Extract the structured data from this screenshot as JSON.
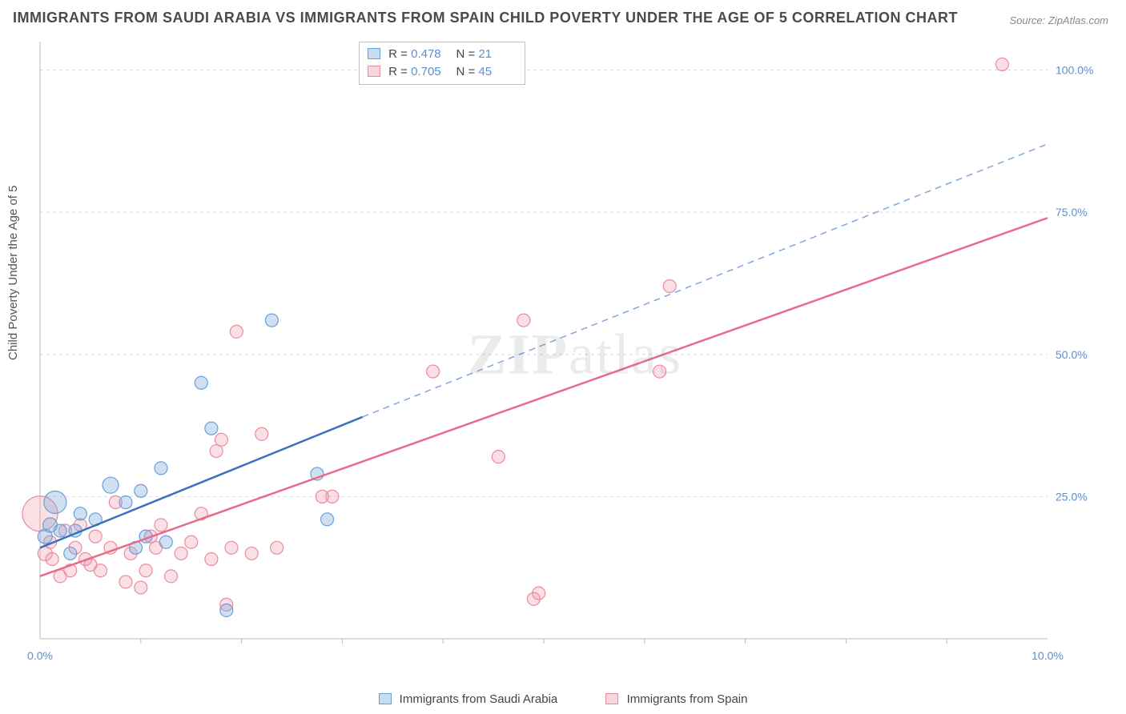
{
  "title": "IMMIGRANTS FROM SAUDI ARABIA VS IMMIGRANTS FROM SPAIN CHILD POVERTY UNDER THE AGE OF 5 CORRELATION CHART",
  "source": "Source: ZipAtlas.com",
  "ylabel": "Child Poverty Under the Age of 5",
  "watermark_bold": "ZIP",
  "watermark_rest": "atlas",
  "legend_top": {
    "rows": [
      {
        "sw": "blue",
        "r_label": "R =",
        "r_val": "0.478",
        "n_label": "N =",
        "n_val": "21"
      },
      {
        "sw": "pink",
        "r_label": "R =",
        "r_val": "0.705",
        "n_label": "N =",
        "n_val": "45"
      }
    ]
  },
  "legend_bottom": {
    "items": [
      {
        "sw": "blue",
        "label": "Immigrants from Saudi Arabia"
      },
      {
        "sw": "pink",
        "label": "Immigrants from Spain"
      }
    ]
  },
  "chart": {
    "type": "scatter",
    "xlim": [
      0,
      10
    ],
    "ylim": [
      0,
      105
    ],
    "xticks": [
      0,
      10
    ],
    "xtick_labels": [
      "0.0%",
      "10.0%"
    ],
    "xtick_minors": [
      1,
      2,
      3,
      4,
      5,
      6,
      7,
      8,
      9
    ],
    "yticks": [
      25,
      50,
      75,
      100
    ],
    "ytick_labels": [
      "25.0%",
      "50.0%",
      "75.0%",
      "100.0%"
    ],
    "grid_color": "#d9d9d9",
    "background_color": "#ffffff",
    "colors": {
      "blue_fill": "rgba(120,165,220,0.35)",
      "blue_stroke": "#6a9ed8",
      "pink_fill": "rgba(240,150,170,0.30)",
      "pink_stroke": "#ec8aa0",
      "trend_blue": "#3d6fbf",
      "trend_pink": "#e76b88"
    },
    "series_blue": {
      "points": [
        [
          0.05,
          18,
          9
        ],
        [
          0.1,
          20,
          9
        ],
        [
          0.15,
          24,
          14
        ],
        [
          0.2,
          19,
          8
        ],
        [
          0.35,
          19,
          8
        ],
        [
          0.4,
          22,
          8
        ],
        [
          0.55,
          21,
          8
        ],
        [
          0.7,
          27,
          10
        ],
        [
          0.85,
          24,
          8
        ],
        [
          1.0,
          26,
          8
        ],
        [
          1.05,
          18,
          8
        ],
        [
          1.25,
          17,
          8
        ],
        [
          1.2,
          30,
          8
        ],
        [
          1.6,
          45,
          8
        ],
        [
          1.7,
          37,
          8
        ],
        [
          1.85,
          5,
          8
        ],
        [
          2.3,
          56,
          8
        ],
        [
          2.75,
          29,
          8
        ],
        [
          2.85,
          21,
          8
        ],
        [
          0.3,
          15,
          8
        ],
        [
          0.95,
          16,
          8
        ]
      ],
      "trend": {
        "x1": 0,
        "y1": 16,
        "x2": 3.2,
        "y2": 39,
        "dash_x2": 10,
        "dash_y2": 87
      }
    },
    "series_pink": {
      "points": [
        [
          0.0,
          22,
          22
        ],
        [
          0.05,
          15,
          9
        ],
        [
          0.1,
          17,
          8
        ],
        [
          0.12,
          14,
          8
        ],
        [
          0.2,
          11,
          8
        ],
        [
          0.3,
          12,
          8
        ],
        [
          0.35,
          16,
          8
        ],
        [
          0.4,
          20,
          8
        ],
        [
          0.45,
          14,
          8
        ],
        [
          0.55,
          18,
          8
        ],
        [
          0.6,
          12,
          8
        ],
        [
          0.7,
          16,
          8
        ],
        [
          0.75,
          24,
          8
        ],
        [
          0.85,
          10,
          8
        ],
        [
          0.9,
          15,
          8
        ],
        [
          1.0,
          9,
          8
        ],
        [
          1.05,
          12,
          8
        ],
        [
          1.15,
          16,
          8
        ],
        [
          1.2,
          20,
          8
        ],
        [
          1.3,
          11,
          8
        ],
        [
          1.4,
          15,
          8
        ],
        [
          1.5,
          17,
          8
        ],
        [
          1.6,
          22,
          8
        ],
        [
          1.7,
          14,
          8
        ],
        [
          1.75,
          33,
          8
        ],
        [
          1.8,
          35,
          8
        ],
        [
          1.85,
          6,
          8
        ],
        [
          1.9,
          16,
          8
        ],
        [
          1.95,
          54,
          8
        ],
        [
          2.1,
          15,
          8
        ],
        [
          2.2,
          36,
          8
        ],
        [
          2.35,
          16,
          8
        ],
        [
          2.8,
          25,
          8
        ],
        [
          2.9,
          25,
          8
        ],
        [
          3.9,
          47,
          8
        ],
        [
          4.55,
          32,
          8
        ],
        [
          4.8,
          56,
          8
        ],
        [
          4.9,
          7,
          8
        ],
        [
          4.95,
          8,
          8
        ],
        [
          6.15,
          47,
          8
        ],
        [
          6.25,
          62,
          8
        ],
        [
          9.55,
          101,
          8
        ],
        [
          0.25,
          19,
          8
        ],
        [
          0.5,
          13,
          8
        ],
        [
          1.1,
          18,
          8
        ]
      ],
      "trend": {
        "x1": 0,
        "y1": 11,
        "x2": 10,
        "y2": 74
      }
    }
  }
}
